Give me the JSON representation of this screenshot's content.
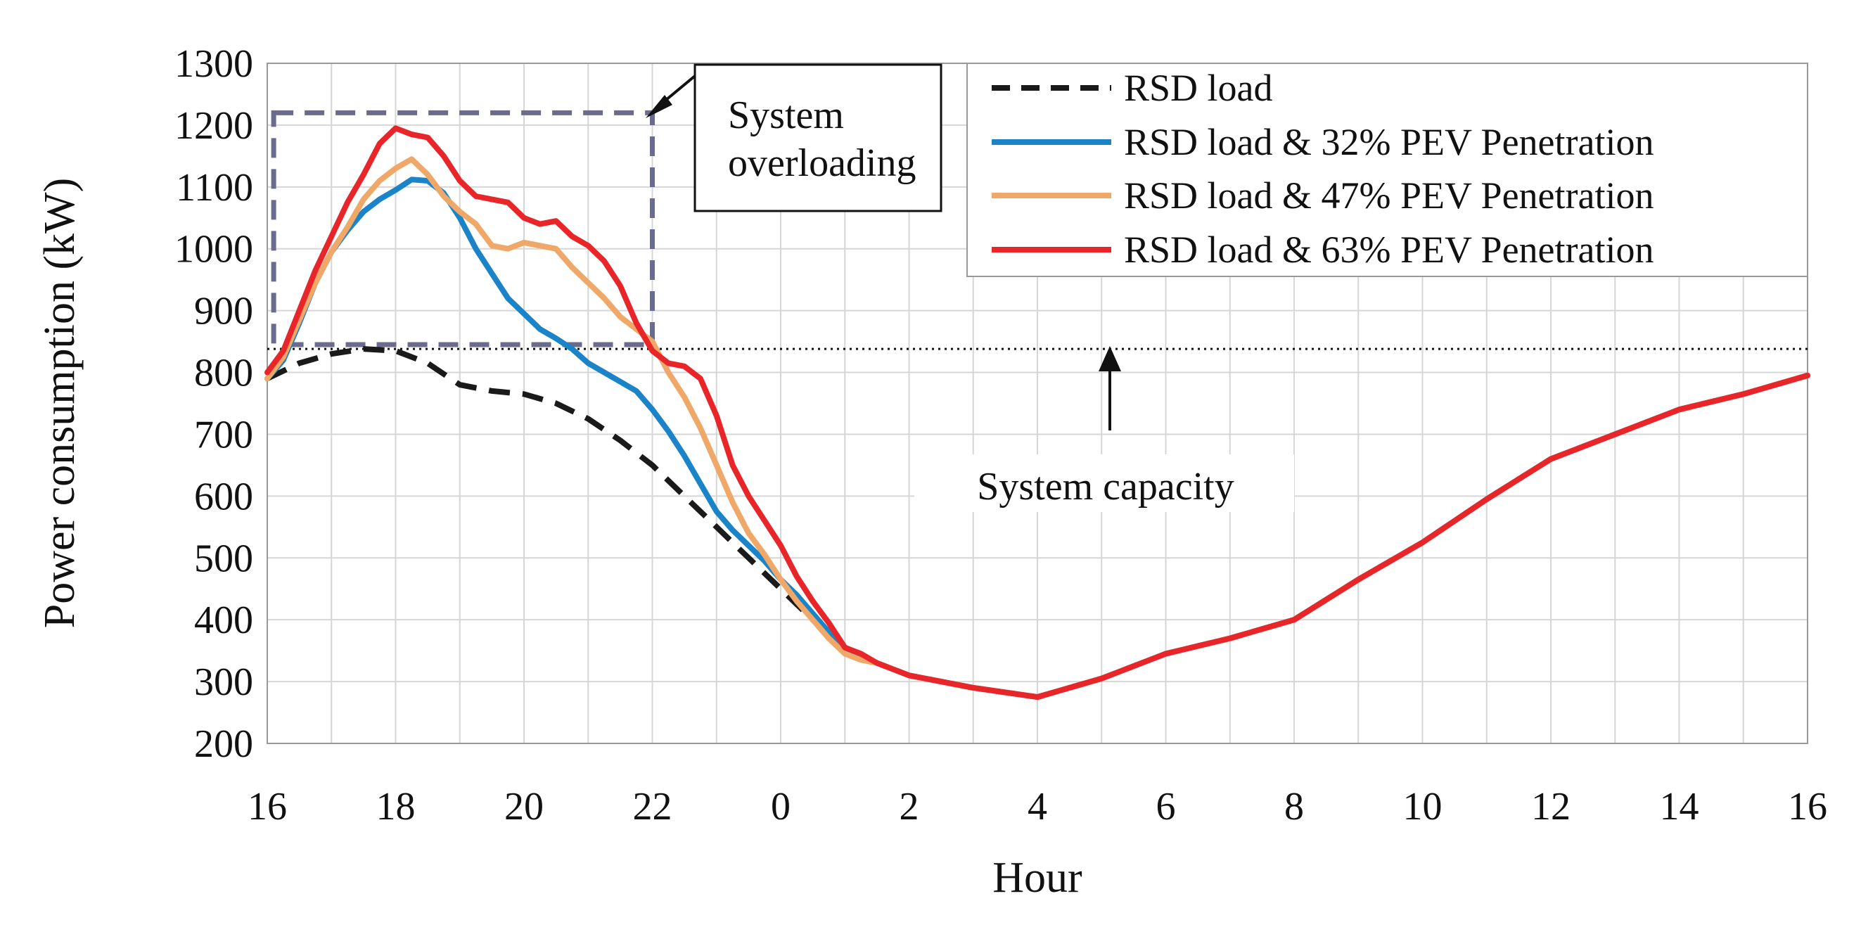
{
  "chart_data": {
    "type": "line",
    "title": "",
    "xlabel": "Hour",
    "ylabel": "Power consumption  (kW)",
    "ylim": [
      200,
      1300
    ],
    "yticks": [
      200,
      300,
      400,
      500,
      600,
      700,
      800,
      900,
      1000,
      1100,
      1200,
      1300
    ],
    "xlim": [
      0,
      24
    ],
    "xtick_labels": [
      "16",
      "18",
      "20",
      "22",
      "0",
      "2",
      "4",
      "6",
      "8",
      "10",
      "12",
      "14",
      "16"
    ],
    "x_note": "x values are hours elapsed since 16:00",
    "grid": true,
    "legend_position": "top-right",
    "capacity": {
      "label": "System capacity",
      "value": 838
    },
    "overload_box": {
      "label_line1": "System",
      "label_line2": "overloading",
      "x_start": 0.1,
      "x_end": 6,
      "y_low": 845,
      "y_high": 1220
    },
    "series": [
      {
        "name": "RSD load",
        "color": "#1a1a1a",
        "dash": "dashed",
        "points": [
          [
            0,
            790
          ],
          [
            0.5,
            815
          ],
          [
            1,
            830
          ],
          [
            1.5,
            838
          ],
          [
            2,
            835
          ],
          [
            2.5,
            815
          ],
          [
            3,
            780
          ],
          [
            3.5,
            770
          ],
          [
            4,
            765
          ],
          [
            4.5,
            750
          ],
          [
            5,
            725
          ],
          [
            5.5,
            690
          ],
          [
            6,
            650
          ],
          [
            6.5,
            600
          ],
          [
            7,
            550
          ],
          [
            7.5,
            500
          ],
          [
            8,
            450
          ],
          [
            8.5,
            400
          ],
          [
            9,
            350
          ],
          [
            9.5,
            330
          ],
          [
            10,
            310
          ],
          [
            11,
            290
          ],
          [
            12,
            275
          ],
          [
            13,
            305
          ],
          [
            14,
            345
          ],
          [
            15,
            370
          ],
          [
            16,
            400
          ],
          [
            17,
            465
          ],
          [
            18,
            525
          ],
          [
            19,
            595
          ],
          [
            20,
            660
          ],
          [
            21,
            700
          ],
          [
            22,
            740
          ],
          [
            23,
            765
          ],
          [
            24,
            795
          ]
        ]
      },
      {
        "name": "RSD load & 32% PEV Penetration",
        "color": "#1b84c8",
        "dash": "solid",
        "points": [
          [
            0,
            790
          ],
          [
            0.25,
            820
          ],
          [
            0.5,
            880
          ],
          [
            0.75,
            945
          ],
          [
            1,
            995
          ],
          [
            1.25,
            1030
          ],
          [
            1.5,
            1060
          ],
          [
            1.75,
            1080
          ],
          [
            2,
            1095
          ],
          [
            2.25,
            1112
          ],
          [
            2.5,
            1110
          ],
          [
            2.75,
            1090
          ],
          [
            3,
            1050
          ],
          [
            3.25,
            1000
          ],
          [
            3.5,
            960
          ],
          [
            3.75,
            920
          ],
          [
            4,
            895
          ],
          [
            4.25,
            870
          ],
          [
            4.5,
            855
          ],
          [
            4.75,
            838
          ],
          [
            5,
            815
          ],
          [
            5.25,
            800
          ],
          [
            5.5,
            785
          ],
          [
            5.75,
            770
          ],
          [
            6,
            740
          ],
          [
            6.25,
            705
          ],
          [
            6.5,
            665
          ],
          [
            6.75,
            620
          ],
          [
            7,
            575
          ],
          [
            7.25,
            545
          ],
          [
            7.5,
            520
          ],
          [
            7.75,
            495
          ],
          [
            8,
            465
          ],
          [
            8.25,
            440
          ],
          [
            8.5,
            410
          ],
          [
            8.75,
            380
          ],
          [
            9,
            350
          ],
          [
            9.25,
            340
          ],
          [
            9.5,
            330
          ],
          [
            10,
            310
          ],
          [
            11,
            290
          ],
          [
            12,
            275
          ],
          [
            13,
            305
          ],
          [
            14,
            345
          ],
          [
            15,
            370
          ],
          [
            16,
            400
          ],
          [
            17,
            465
          ],
          [
            18,
            525
          ],
          [
            19,
            595
          ],
          [
            20,
            660
          ],
          [
            21,
            700
          ],
          [
            22,
            740
          ],
          [
            23,
            765
          ],
          [
            24,
            795
          ]
        ]
      },
      {
        "name": "RSD load & 47% PEV Penetration",
        "color": "#f0a868",
        "dash": "solid",
        "points": [
          [
            0,
            790
          ],
          [
            0.25,
            825
          ],
          [
            0.5,
            885
          ],
          [
            0.75,
            945
          ],
          [
            1,
            995
          ],
          [
            1.25,
            1035
          ],
          [
            1.5,
            1080
          ],
          [
            1.75,
            1110
          ],
          [
            2,
            1130
          ],
          [
            2.25,
            1145
          ],
          [
            2.5,
            1120
          ],
          [
            2.75,
            1085
          ],
          [
            3,
            1060
          ],
          [
            3.25,
            1040
          ],
          [
            3.5,
            1005
          ],
          [
            3.75,
            1000
          ],
          [
            4,
            1010
          ],
          [
            4.25,
            1005
          ],
          [
            4.5,
            1000
          ],
          [
            4.75,
            970
          ],
          [
            5,
            945
          ],
          [
            5.25,
            920
          ],
          [
            5.5,
            890
          ],
          [
            5.75,
            870
          ],
          [
            6,
            850
          ],
          [
            6.25,
            800
          ],
          [
            6.5,
            760
          ],
          [
            6.75,
            710
          ],
          [
            7,
            650
          ],
          [
            7.25,
            590
          ],
          [
            7.5,
            540
          ],
          [
            7.75,
            505
          ],
          [
            8,
            465
          ],
          [
            8.25,
            430
          ],
          [
            8.5,
            400
          ],
          [
            8.75,
            370
          ],
          [
            9,
            345
          ],
          [
            9.25,
            335
          ],
          [
            9.5,
            330
          ],
          [
            10,
            310
          ],
          [
            11,
            290
          ],
          [
            12,
            275
          ],
          [
            13,
            305
          ],
          [
            14,
            345
          ],
          [
            15,
            370
          ],
          [
            16,
            400
          ],
          [
            17,
            465
          ],
          [
            18,
            525
          ],
          [
            19,
            595
          ],
          [
            20,
            660
          ],
          [
            21,
            700
          ],
          [
            22,
            740
          ],
          [
            23,
            765
          ],
          [
            24,
            795
          ]
        ]
      },
      {
        "name": "RSD load & 63% PEV Penetration",
        "color": "#e8262a",
        "dash": "solid",
        "points": [
          [
            0,
            800
          ],
          [
            0.25,
            835
          ],
          [
            0.5,
            900
          ],
          [
            0.75,
            965
          ],
          [
            1,
            1020
          ],
          [
            1.25,
            1075
          ],
          [
            1.5,
            1120
          ],
          [
            1.75,
            1170
          ],
          [
            2,
            1195
          ],
          [
            2.25,
            1185
          ],
          [
            2.5,
            1180
          ],
          [
            2.75,
            1150
          ],
          [
            3,
            1110
          ],
          [
            3.25,
            1085
          ],
          [
            3.5,
            1080
          ],
          [
            3.75,
            1075
          ],
          [
            4,
            1050
          ],
          [
            4.25,
            1040
          ],
          [
            4.5,
            1045
          ],
          [
            4.75,
            1020
          ],
          [
            5,
            1005
          ],
          [
            5.25,
            980
          ],
          [
            5.5,
            940
          ],
          [
            5.75,
            880
          ],
          [
            6,
            835
          ],
          [
            6.25,
            815
          ],
          [
            6.5,
            810
          ],
          [
            6.75,
            790
          ],
          [
            7,
            730
          ],
          [
            7.25,
            650
          ],
          [
            7.5,
            600
          ],
          [
            7.75,
            560
          ],
          [
            8,
            520
          ],
          [
            8.25,
            470
          ],
          [
            8.5,
            430
          ],
          [
            8.75,
            395
          ],
          [
            9,
            355
          ],
          [
            9.25,
            345
          ],
          [
            9.5,
            330
          ],
          [
            10,
            310
          ],
          [
            11,
            290
          ],
          [
            12,
            275
          ],
          [
            13,
            305
          ],
          [
            14,
            345
          ],
          [
            15,
            370
          ],
          [
            16,
            400
          ],
          [
            17,
            465
          ],
          [
            18,
            525
          ],
          [
            19,
            595
          ],
          [
            20,
            660
          ],
          [
            21,
            700
          ],
          [
            22,
            740
          ],
          [
            23,
            765
          ],
          [
            24,
            795
          ]
        ]
      }
    ]
  }
}
